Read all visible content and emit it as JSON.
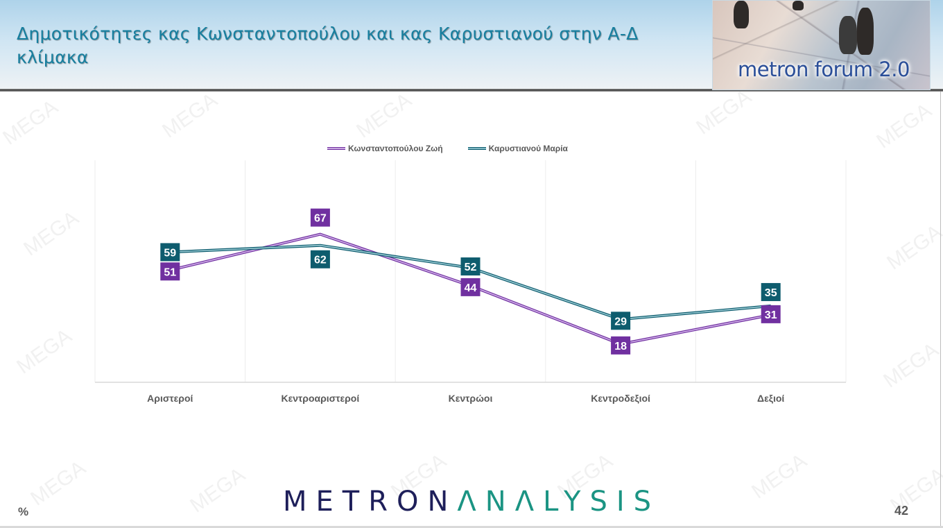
{
  "slide": {
    "title": "Δημοτικότητες κας Κωνσταντοπούλου και κας Καρυστιανού στην Α-Δ κλίμακα",
    "logo_text": "metron forum 2.0",
    "unit_label": "%",
    "page_number": "42",
    "brand_part1": "METRON",
    "brand_part2": "ΛNΛLYSIS",
    "watermark": "MEGA"
  },
  "colors": {
    "purple": "#7030a0",
    "teal": "#0e5c6e",
    "title": "#177f9f",
    "brand_dark": "#1e1f5a",
    "brand_teal": "#1b9483"
  },
  "chart_data": {
    "type": "line",
    "title": "",
    "xlabel": "",
    "ylabel": "%",
    "ylim": [
      0,
      100
    ],
    "grid": "vertical category gridlines only",
    "legend_position": "top",
    "categories": [
      "Αριστεροί",
      "Κεντροαριστεροί",
      "Κεντρώοι",
      "Κεντροδεξιοί",
      "Δεξιοί"
    ],
    "series": [
      {
        "name": "Κωνσταντοπούλου Ζωή",
        "color": "#7030a0",
        "values": [
          51,
          67,
          44,
          18,
          31
        ]
      },
      {
        "name": "Καρυστιανού Μαρία",
        "color": "#0e5c6e",
        "values": [
          59,
          62,
          52,
          29,
          35
        ]
      }
    ]
  },
  "legend": [
    {
      "label": "Κωνσταντοπούλου Ζωή"
    },
    {
      "label": "Καρυστιανού Μαρία"
    }
  ]
}
